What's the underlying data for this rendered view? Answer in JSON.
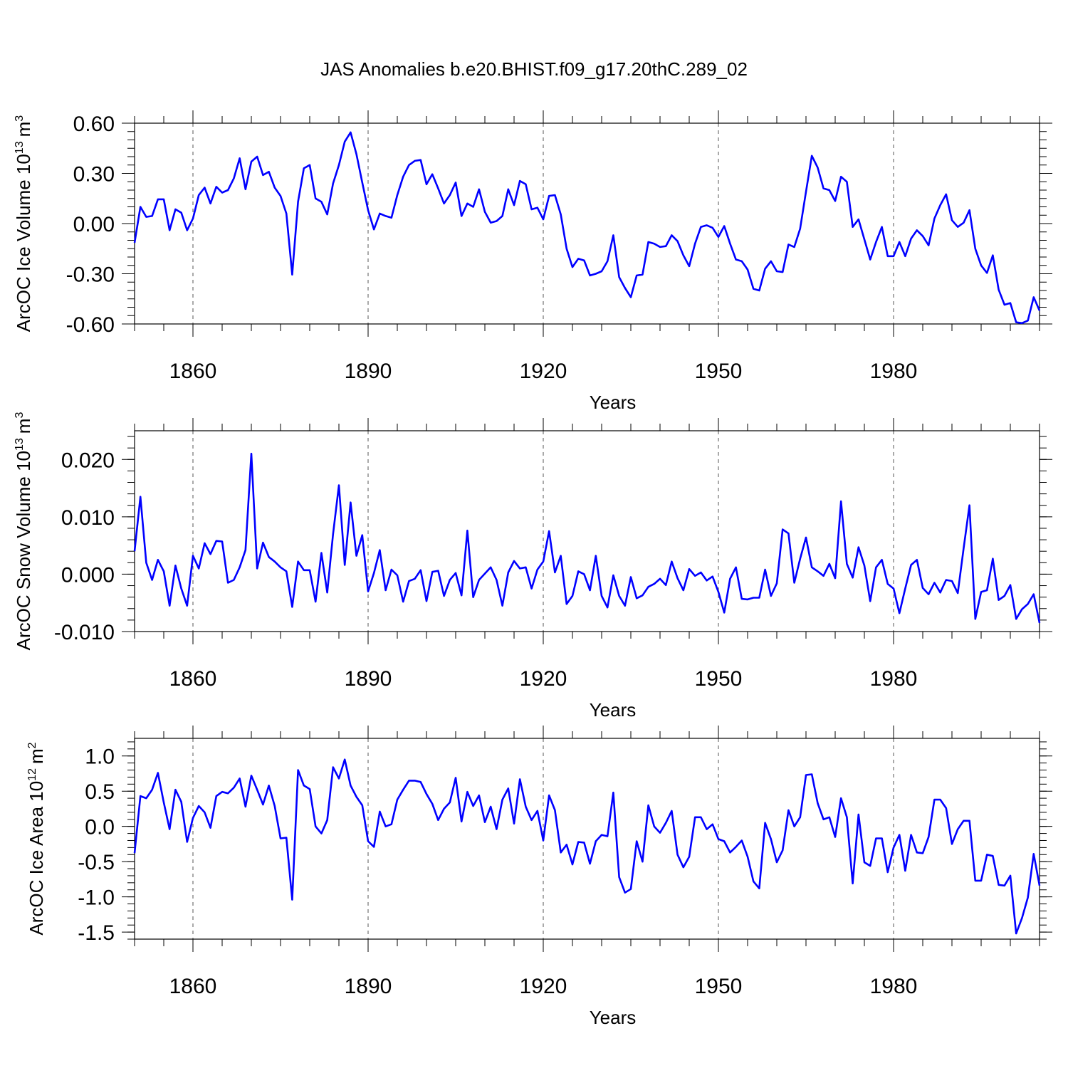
{
  "title": "JAS Anomalies b.e20.BHIST.f09_g17.20thC.289_02",
  "chart_data": [
    {
      "type": "line",
      "ylabel_main": "ArcOC Ice Volume 10",
      "ylabel_exp": "13",
      "ylabel_unit": "m",
      "ylabel_unit_exp": "3",
      "xlabel": "Years",
      "xlim": [
        1850,
        2005
      ],
      "ylim": [
        -0.6,
        0.6
      ],
      "xticks": [
        1860,
        1890,
        1920,
        1950,
        1980
      ],
      "xtick_labels": [
        "1860",
        "1890",
        "1920",
        "1950",
        "1980"
      ],
      "yticks": [
        -0.6,
        -0.3,
        0.0,
        0.3,
        0.6
      ],
      "ytick_labels": [
        "-0.60",
        "-0.30",
        "0.00",
        "0.30",
        "0.60"
      ],
      "yminor": 0.05,
      "color": "#0000ff",
      "x_start": 1850,
      "values": [
        -0.115,
        0.1,
        0.04,
        0.045,
        0.145,
        0.145,
        -0.04,
        0.085,
        0.065,
        -0.04,
        0.03,
        0.17,
        0.215,
        0.12,
        0.22,
        0.185,
        0.2,
        0.27,
        0.39,
        0.205,
        0.37,
        0.4,
        0.29,
        0.31,
        0.215,
        0.165,
        0.06,
        -0.305,
        0.13,
        0.33,
        0.35,
        0.15,
        0.13,
        0.055,
        0.24,
        0.35,
        0.49,
        0.545,
        0.415,
        0.245,
        0.08,
        -0.035,
        0.06,
        0.045,
        0.035,
        0.17,
        0.28,
        0.35,
        0.375,
        0.38,
        0.235,
        0.295,
        0.21,
        0.12,
        0.17,
        0.245,
        0.045,
        0.12,
        0.1,
        0.205,
        0.07,
        0.005,
        0.015,
        0.045,
        0.205,
        0.11,
        0.255,
        0.235,
        0.085,
        0.095,
        0.025,
        0.165,
        0.17,
        0.055,
        -0.15,
        -0.26,
        -0.21,
        -0.22,
        -0.31,
        -0.3,
        -0.285,
        -0.225,
        -0.07,
        -0.32,
        -0.385,
        -0.44,
        -0.31,
        -0.305,
        -0.11,
        -0.12,
        -0.14,
        -0.135,
        -0.07,
        -0.105,
        -0.19,
        -0.255,
        -0.12,
        -0.02,
        -0.01,
        -0.025,
        -0.08,
        -0.015,
        -0.12,
        -0.215,
        -0.225,
        -0.275,
        -0.39,
        -0.4,
        -0.27,
        -0.225,
        -0.285,
        -0.29,
        -0.125,
        -0.14,
        -0.03,
        0.19,
        0.405,
        0.335,
        0.21,
        0.2,
        0.135,
        0.28,
        0.25,
        -0.02,
        0.025,
        -0.095,
        -0.215,
        -0.11,
        -0.02,
        -0.195,
        -0.195,
        -0.11,
        -0.195,
        -0.09,
        -0.04,
        -0.075,
        -0.13,
        0.03,
        0.11,
        0.175,
        0.02,
        -0.02,
        0.005,
        0.08,
        -0.15,
        -0.25,
        -0.295,
        -0.19,
        -0.395,
        -0.485,
        -0.475,
        -0.59,
        -0.595,
        -0.58,
        -0.44,
        -0.52
      ]
    },
    {
      "type": "line",
      "ylabel_main": "ArcOC Snow Volume 10",
      "ylabel_exp": "13",
      "ylabel_unit": "m",
      "ylabel_unit_exp": "3",
      "xlabel": "Years",
      "xlim": [
        1850,
        2005
      ],
      "ylim": [
        -0.01,
        0.025
      ],
      "xticks": [
        1860,
        1890,
        1920,
        1950,
        1980
      ],
      "xtick_labels": [
        "1860",
        "1890",
        "1920",
        "1950",
        "1980"
      ],
      "yticks": [
        -0.01,
        0.0,
        0.01,
        0.02
      ],
      "ytick_labels": [
        "-0.010",
        "0.000",
        "0.010",
        "0.020"
      ],
      "yminor": 0.002,
      "color": "#0000ff",
      "x_start": 1850,
      "values": [
        0.004,
        0.0135,
        0.002,
        -0.001,
        0.0025,
        0.0005,
        -0.0055,
        0.0015,
        -0.0025,
        -0.0055,
        0.0032,
        0.001,
        0.0054,
        0.0035,
        0.0058,
        0.0057,
        -0.0015,
        -0.001,
        0.0012,
        0.0042,
        0.021,
        0.001,
        0.0055,
        0.003,
        0.0022,
        0.0012,
        0.0005,
        -0.0057,
        0.0022,
        0.0007,
        0.0007,
        -0.0048,
        0.0037,
        -0.0032,
        0.007,
        0.0155,
        0.0016,
        0.0125,
        0.0032,
        0.0068,
        -0.003,
        0.0002,
        0.0042,
        -0.0028,
        0.0008,
        -0.0002,
        -0.0048,
        -0.0012,
        -0.0008,
        0.0007,
        -0.0047,
        0.0004,
        0.0006,
        -0.0038,
        -0.001,
        0.0002,
        -0.0037,
        0.0076,
        -0.004,
        -0.001,
        0.0001,
        0.0012,
        -0.001,
        -0.0055,
        0.0003,
        0.0023,
        0.001,
        0.0012,
        -0.0025,
        0.0008,
        0.0022,
        0.0075,
        0.0003,
        0.0032,
        -0.0052,
        -0.0038,
        0.0005,
        0.0,
        -0.0028,
        0.0032,
        -0.0038,
        -0.0058,
        -0.0002,
        -0.0038,
        -0.0055,
        -0.0005,
        -0.0042,
        -0.0037,
        -0.0022,
        -0.0017,
        -0.0008,
        -0.0019,
        0.0022,
        -0.0007,
        -0.0028,
        0.0009,
        -0.0003,
        0.0003,
        -0.0011,
        -0.0004,
        -0.0031,
        -0.0067,
        -0.0008,
        0.0012,
        -0.0043,
        -0.0044,
        -0.0041,
        -0.0041,
        0.0008,
        -0.0038,
        -0.0016,
        0.0078,
        0.0071,
        -0.0015,
        0.0027,
        0.0064,
        0.0012,
        0.0005,
        -0.0003,
        0.0018,
        -0.0007,
        0.0127,
        0.0018,
        -0.0006,
        0.0047,
        0.0015,
        -0.0047,
        0.0012,
        0.0025,
        -0.0017,
        -0.0025,
        -0.0068,
        -0.0025,
        0.0016,
        0.0025,
        -0.0024,
        -0.0035,
        -0.0015,
        -0.0032,
        -0.001,
        -0.0012,
        -0.0033,
        0.0045,
        0.012,
        -0.0078,
        -0.0031,
        -0.0028,
        0.0027,
        -0.0045,
        -0.0038,
        -0.0019,
        -0.0078,
        -0.0061,
        -0.0052,
        -0.0035,
        -0.0085
      ]
    },
    {
      "type": "line",
      "ylabel_main": "ArcOC Ice Area 10",
      "ylabel_exp": "12",
      "ylabel_unit": "m",
      "ylabel_unit_exp": "2",
      "xlabel": "Years",
      "xlim": [
        1850,
        2005
      ],
      "ylim": [
        -1.6,
        1.25
      ],
      "xticks": [
        1860,
        1890,
        1920,
        1950,
        1980
      ],
      "xtick_labels": [
        "1860",
        "1890",
        "1920",
        "1950",
        "1980"
      ],
      "yticks": [
        -1.5,
        -1.0,
        -0.5,
        0.0,
        0.5,
        1.0
      ],
      "ytick_labels": [
        "-1.5",
        "-1.0",
        "-0.5",
        "0.0",
        "0.5",
        "1.0"
      ],
      "yminor": 0.1,
      "color": "#0000ff",
      "x_start": 1850,
      "values": [
        -0.38,
        0.43,
        0.4,
        0.52,
        0.76,
        0.34,
        -0.04,
        0.52,
        0.35,
        -0.22,
        0.12,
        0.29,
        0.2,
        -0.02,
        0.43,
        0.49,
        0.47,
        0.55,
        0.68,
        0.28,
        0.72,
        0.52,
        0.31,
        0.58,
        0.29,
        -0.17,
        -0.16,
        -1.04,
        0.8,
        0.58,
        0.53,
        0.0,
        -0.1,
        0.09,
        0.84,
        0.68,
        0.95,
        0.58,
        0.42,
        0.3,
        -0.21,
        -0.29,
        0.21,
        0.0,
        0.03,
        0.38,
        0.52,
        0.65,
        0.65,
        0.63,
        0.46,
        0.32,
        0.09,
        0.25,
        0.34,
        0.69,
        0.07,
        0.49,
        0.29,
        0.44,
        0.06,
        0.28,
        -0.04,
        0.38,
        0.54,
        0.04,
        0.67,
        0.28,
        0.09,
        0.22,
        -0.2,
        0.44,
        0.23,
        -0.37,
        -0.26,
        -0.54,
        -0.22,
        -0.23,
        -0.53,
        -0.21,
        -0.12,
        -0.14,
        0.48,
        -0.72,
        -0.94,
        -0.89,
        -0.21,
        -0.5,
        0.3,
        0.0,
        -0.09,
        0.05,
        0.22,
        -0.4,
        -0.58,
        -0.43,
        0.13,
        0.13,
        -0.04,
        0.03,
        -0.18,
        -0.21,
        -0.37,
        -0.29,
        -0.2,
        -0.43,
        -0.78,
        -0.88,
        0.05,
        -0.18,
        -0.51,
        -0.34,
        0.23,
        0.0,
        0.13,
        0.73,
        0.74,
        0.33,
        0.1,
        0.13,
        -0.15,
        0.4,
        0.13,
        -0.81,
        0.17,
        -0.51,
        -0.56,
        -0.17,
        -0.17,
        -0.65,
        -0.3,
        -0.12,
        -0.63,
        -0.12,
        -0.37,
        -0.38,
        -0.15,
        0.38,
        0.38,
        0.26,
        -0.25,
        -0.04,
        0.08,
        0.08,
        -0.77,
        -0.77,
        -0.4,
        -0.42,
        -0.83,
        -0.84,
        -0.7,
        -1.52,
        -1.3,
        -1.01,
        -0.39,
        -0.84
      ]
    }
  ]
}
